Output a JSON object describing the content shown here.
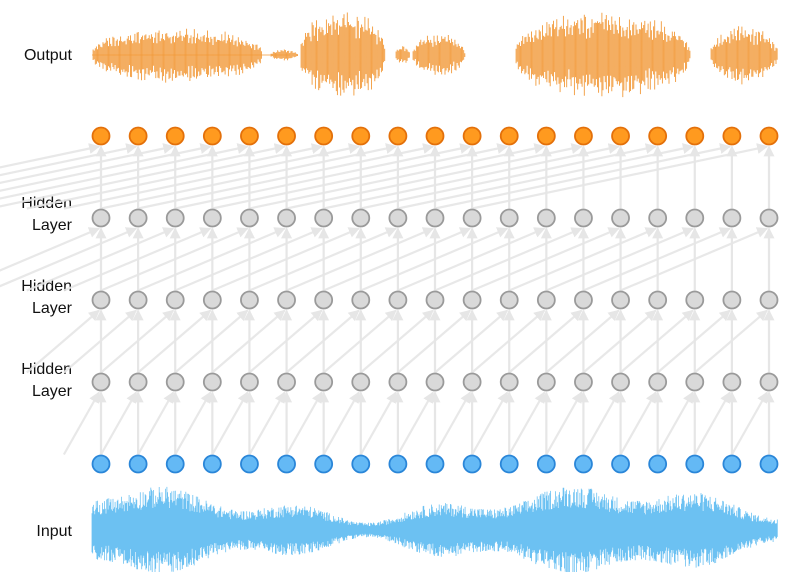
{
  "labels": {
    "output": "Output",
    "hidden_1": [
      "Hidden",
      "Layer"
    ],
    "hidden_2": [
      "Hidden",
      "Layer"
    ],
    "hidden_3": [
      "Hidden",
      "Layer"
    ],
    "input": "Input"
  },
  "network": {
    "nodes_per_layer": 19,
    "layers": [
      {
        "name": "output",
        "fill": "#ff9a1f",
        "stroke": "#e3700a"
      },
      {
        "name": "hidden-3",
        "fill": "#d9d9d9",
        "stroke": "#9a9a9a"
      },
      {
        "name": "hidden-2",
        "fill": "#d9d9d9",
        "stroke": "#9a9a9a"
      },
      {
        "name": "hidden-1",
        "fill": "#d9d9d9",
        "stroke": "#9a9a9a"
      },
      {
        "name": "input",
        "fill": "#64b9f5",
        "stroke": "#2a86d8"
      }
    ],
    "connection_color": "#e6e6e6"
  },
  "waveforms": {
    "output_color": "#f29a3a",
    "input_color": "#6cc1f2"
  }
}
